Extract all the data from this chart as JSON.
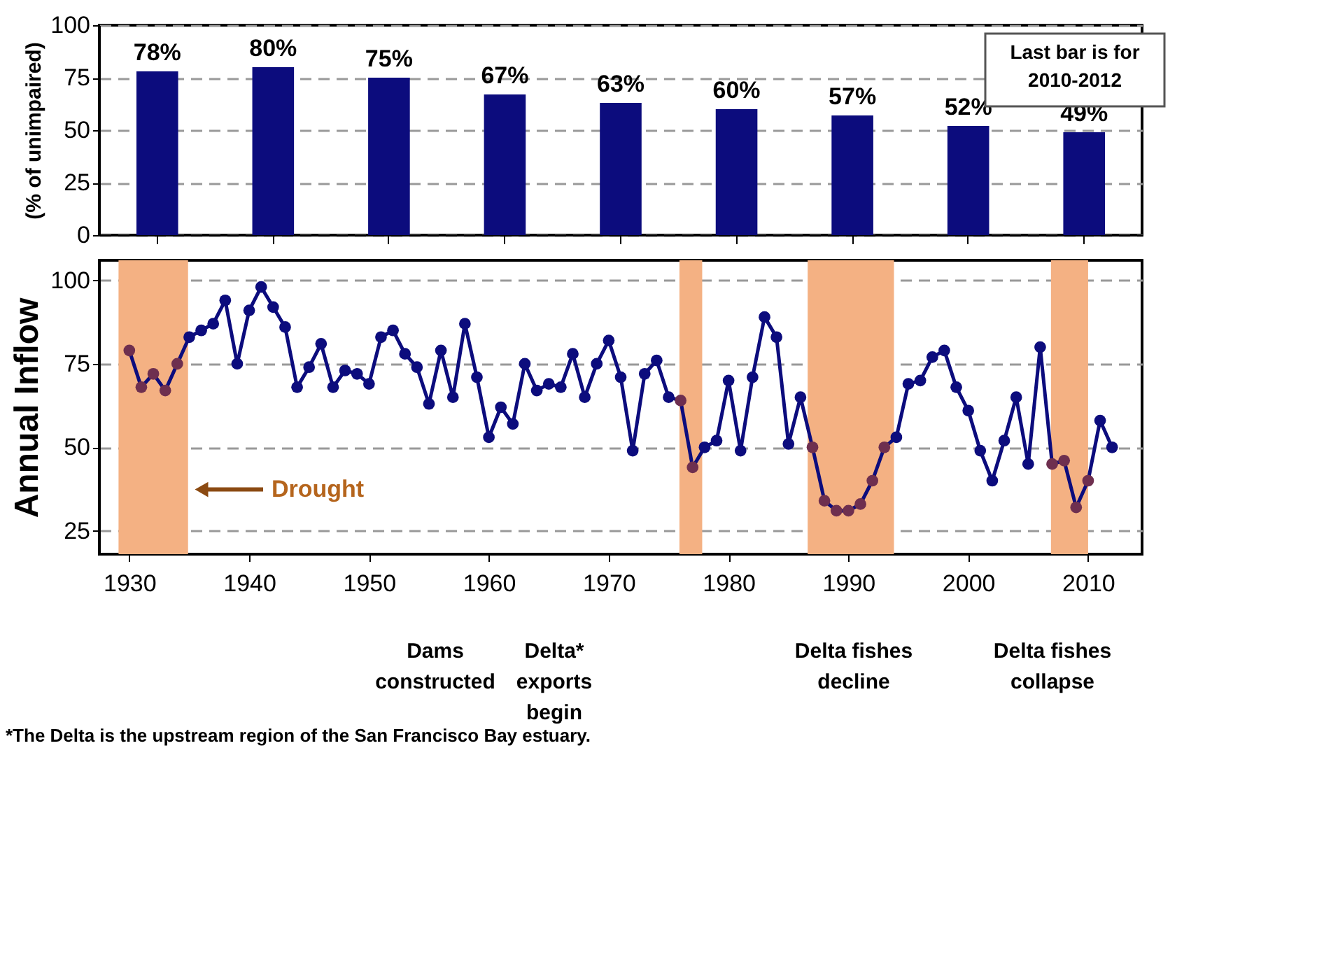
{
  "chart_data": [
    {
      "type": "bar",
      "categories": [
        null,
        null,
        null,
        null,
        null,
        null,
        null,
        null,
        null
      ],
      "values": [
        78,
        80,
        75,
        67,
        63,
        60,
        57,
        52,
        49
      ],
      "value_labels": [
        "78%",
        "80%",
        "75%",
        "67%",
        "63%",
        "60%",
        "57%",
        "52%",
        "49%"
      ],
      "color": "#0c0c7d",
      "ylabel": "(% of unimpaired)",
      "ylim": [
        0,
        100
      ],
      "yticks": [
        0,
        25,
        50,
        75,
        100
      ],
      "grid": "y",
      "tick_labels": "y",
      "annotations": [
        "Last bar is for\n2010-2012"
      ]
    },
    {
      "type": "line",
      "ylabel": "Annual Inflow",
      "x": [
        1930,
        1931,
        1932,
        1933,
        1934,
        1935,
        1936,
        1937,
        1938,
        1939,
        1940,
        1941,
        1942,
        1943,
        1944,
        1945,
        1946,
        1947,
        1948,
        1949,
        1950,
        1951,
        1952,
        1953,
        1954,
        1955,
        1956,
        1957,
        1958,
        1959,
        1960,
        1961,
        1962,
        1963,
        1964,
        1965,
        1966,
        1967,
        1968,
        1969,
        1970,
        1971,
        1972,
        1973,
        1974,
        1975,
        1976,
        1977,
        1978,
        1979,
        1980,
        1981,
        1982,
        1983,
        1984,
        1985,
        1986,
        1987,
        1988,
        1989,
        1990,
        1991,
        1992,
        1993,
        1994,
        1995,
        1996,
        1997,
        1998,
        1999,
        2000,
        2001,
        2002,
        2003,
        2004,
        2005,
        2006,
        2007,
        2008,
        2009,
        2010,
        2011,
        2012
      ],
      "series": [
        {
          "color": "#0c0c7d",
          "values": [
            79,
            68,
            72,
            67,
            75,
            83,
            85,
            87,
            94,
            75,
            91,
            98,
            92,
            86,
            68,
            74,
            81,
            68,
            73,
            72,
            69,
            83,
            85,
            78,
            74,
            63,
            79,
            65,
            87,
            71,
            53,
            62,
            57,
            75,
            67,
            69,
            68,
            78,
            65,
            75,
            82,
            71,
            49,
            72,
            76,
            65,
            64,
            44,
            50,
            52,
            70,
            49,
            71,
            89,
            83,
            51,
            65,
            50,
            34,
            31,
            31,
            33,
            40,
            50,
            53,
            69,
            70,
            77,
            79,
            68,
            61,
            49,
            40,
            52,
            65,
            45,
            80,
            45,
            46,
            32,
            40,
            58,
            50
          ],
          "colors": [
            "#6e2f4f",
            "#6e2f4f",
            "#6e2f4f",
            "#6e2f4f",
            "#6e2f4f",
            "#0c0c7d",
            "#0c0c7d",
            "#0c0c7d",
            "#0c0c7d",
            "#0c0c7d",
            "#0c0c7d",
            "#0c0c7d",
            "#0c0c7d",
            "#0c0c7d",
            "#0c0c7d",
            "#0c0c7d",
            "#0c0c7d",
            "#0c0c7d",
            "#0c0c7d",
            "#0c0c7d",
            "#0c0c7d",
            "#0c0c7d",
            "#0c0c7d",
            "#0c0c7d",
            "#0c0c7d",
            "#0c0c7d",
            "#0c0c7d",
            "#0c0c7d",
            "#0c0c7d",
            "#0c0c7d",
            "#0c0c7d",
            "#0c0c7d",
            "#0c0c7d",
            "#0c0c7d",
            "#0c0c7d",
            "#0c0c7d",
            "#0c0c7d",
            "#0c0c7d",
            "#0c0c7d",
            "#0c0c7d",
            "#0c0c7d",
            "#0c0c7d",
            "#0c0c7d",
            "#0c0c7d",
            "#0c0c7d",
            "#0c0c7d",
            "#6e2f4f",
            "#6e2f4f",
            "#0c0c7d",
            "#0c0c7d",
            "#0c0c7d",
            "#0c0c7d",
            "#0c0c7d",
            "#0c0c7d",
            "#0c0c7d",
            "#0c0c7d",
            "#0c0c7d",
            "#6e2f4f",
            "#6e2f4f",
            "#6e2f4f",
            "#6e2f4f",
            "#6e2f4f",
            "#6e2f4f",
            "#6e2f4f",
            "#0c0c7d",
            "#0c0c7d",
            "#0c0c7d",
            "#0c0c7d",
            "#0c0c7d",
            "#0c0c7d",
            "#0c0c7d",
            "#0c0c7d",
            "#0c0c7d",
            "#0c0c7d",
            "#0c0c7d",
            "#0c0c7d",
            "#0c0c7d",
            "#6e2f4f",
            "#6e2f4f",
            "#6e2f4f",
            "#6e2f4f",
            "#0c0c7d",
            "#0c0c7d"
          ]
        }
      ],
      "xlim": [
        1927.5,
        2014.5
      ],
      "xticks": [
        1930,
        1940,
        1950,
        1960,
        1970,
        1980,
        1990,
        2000,
        2010
      ],
      "ylim": [
        18,
        106
      ],
      "yticks": [
        25,
        50,
        75,
        100
      ],
      "grid": "y",
      "marker": "circle",
      "bands": [
        {
          "axis": "x",
          "from": 1929.1,
          "to": 1934.9,
          "color": "#f4b183"
        },
        {
          "axis": "x",
          "from": 1975.9,
          "to": 1977.8,
          "color": "#f4b183"
        },
        {
          "axis": "x",
          "from": 1986.6,
          "to": 1993.8,
          "color": "#f4b183"
        },
        {
          "axis": "x",
          "from": 2006.9,
          "to": 2010.0,
          "color": "#f4b183"
        }
      ],
      "annotations": [
        "Drought",
        "Dams\nconstructed",
        "Delta*\nexports\nbegin",
        "Delta fishes\ndecline",
        "Delta fishes\ncollapse",
        "*The Delta is the upstream region of the San Francisco Bay estuary."
      ]
    }
  ]
}
